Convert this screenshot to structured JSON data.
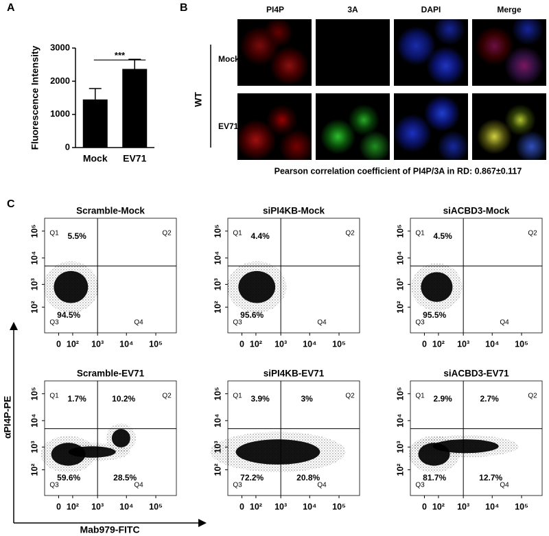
{
  "panel_labels": [
    "A",
    "B",
    "C"
  ],
  "x_label": "Mab979-FITC",
  "y_label": "αPI4P-PE",
  "figure_b": {
    "columns": [
      "PI4P",
      "3A",
      "DAPI",
      "Merge"
    ],
    "group": "WT",
    "rows": [
      "Mock",
      "EV71"
    ],
    "caption": "Pearson correlation coefficient of PI4P/3A in RD: 0.867±0.117"
  },
  "chart_data": [
    {
      "type": "bar",
      "y_label": "Fluorescence Intensity",
      "categories": [
        "Mock",
        "EV71"
      ],
      "values": [
        1450,
        2370
      ],
      "errors": [
        330,
        290
      ],
      "color": "#000000",
      "ylim": [
        0,
        3000
      ],
      "yticks": [
        0,
        1000,
        2000,
        3000
      ],
      "annotation": "***"
    },
    {
      "type": "flow",
      "title": "Scramble-Mock",
      "scale": "symlog",
      "linthresh": 50,
      "xlim": [
        -100,
        500000
      ],
      "ylim": [
        -100,
        300000
      ],
      "xticks": [
        0,
        {
          "value": 100,
          "label": "10²"
        },
        {
          "value": 1000,
          "label": "10³"
        },
        {
          "value": 10000,
          "label": "10⁴"
        },
        {
          "value": 100000,
          "label": "10⁵"
        }
      ],
      "yticks": [
        {
          "value": 100,
          "label": "10²"
        },
        {
          "value": 1000,
          "label": "10³"
        },
        {
          "value": 10000,
          "label": "10⁴"
        },
        {
          "value": 100000,
          "label": "10⁵"
        }
      ],
      "gate": [
        1000,
        5000
      ],
      "quadrants": [
        "Q1",
        "Q2",
        "Q3",
        "Q4"
      ],
      "values": [
        5.5,
        null,
        94.5,
        null
      ],
      "value_labels": [
        "5.5%",
        null,
        "94.5%",
        null
      ],
      "color": "#000000"
    },
    {
      "type": "flow",
      "title": "siPI4KB-Mock",
      "scale": "symlog",
      "linthresh": 50,
      "xlim": [
        -100,
        500000
      ],
      "ylim": [
        -100,
        300000
      ],
      "xticks": [
        0,
        {
          "value": 100,
          "label": "10²"
        },
        {
          "value": 1000,
          "label": "10³"
        },
        {
          "value": 10000,
          "label": "10⁴"
        },
        {
          "value": 100000,
          "label": "10⁵"
        }
      ],
      "yticks": [
        {
          "value": 100,
          "label": "10²"
        },
        {
          "value": 1000,
          "label": "10³"
        },
        {
          "value": 10000,
          "label": "10⁴"
        },
        {
          "value": 100000,
          "label": "10⁵"
        }
      ],
      "gate": [
        1000,
        5000
      ],
      "quadrants": [
        "Q1",
        "Q2",
        "Q3",
        "Q4"
      ],
      "values": [
        4.4,
        null,
        95.6,
        null
      ],
      "value_labels": [
        "4.4%",
        null,
        "95.6%",
        null
      ],
      "color": "#000000"
    },
    {
      "type": "flow",
      "title": "siACBD3-Mock",
      "scale": "symlog",
      "linthresh": 50,
      "xlim": [
        -100,
        500000
      ],
      "ylim": [
        -100,
        300000
      ],
      "xticks": [
        0,
        {
          "value": 100,
          "label": "10²"
        },
        {
          "value": 1000,
          "label": "10³"
        },
        {
          "value": 10000,
          "label": "10⁴"
        },
        {
          "value": 100000,
          "label": "10⁵"
        }
      ],
      "yticks": [
        {
          "value": 100,
          "label": "10²"
        },
        {
          "value": 1000,
          "label": "10³"
        },
        {
          "value": 10000,
          "label": "10⁴"
        },
        {
          "value": 100000,
          "label": "10⁵"
        }
      ],
      "gate": [
        1000,
        5000
      ],
      "quadrants": [
        "Q1",
        "Q2",
        "Q3",
        "Q4"
      ],
      "values": [
        4.5,
        null,
        95.5,
        null
      ],
      "value_labels": [
        "4.5%",
        null,
        "95.5%",
        null
      ],
      "color": "#000000"
    },
    {
      "type": "flow",
      "title": "Scramble-EV71",
      "scale": "symlog",
      "linthresh": 50,
      "xlim": [
        -100,
        500000
      ],
      "ylim": [
        -100,
        300000
      ],
      "xticks": [
        0,
        {
          "value": 100,
          "label": "10²"
        },
        {
          "value": 1000,
          "label": "10³"
        },
        {
          "value": 10000,
          "label": "10⁴"
        },
        {
          "value": 100000,
          "label": "10⁵"
        }
      ],
      "yticks": [
        {
          "value": 100,
          "label": "10²"
        },
        {
          "value": 1000,
          "label": "10³"
        },
        {
          "value": 10000,
          "label": "10⁴"
        },
        {
          "value": 100000,
          "label": "10⁵"
        }
      ],
      "gate": [
        1000,
        5000
      ],
      "quadrants": [
        "Q1",
        "Q2",
        "Q3",
        "Q4"
      ],
      "values": [
        1.7,
        10.2,
        59.6,
        28.5
      ],
      "value_labels": [
        "1.7%",
        "10.2%",
        "59.6%",
        "28.5%"
      ],
      "color": "#000000"
    },
    {
      "type": "flow",
      "title": "siPI4KB-EV71",
      "scale": "symlog",
      "linthresh": 50,
      "xlim": [
        -100,
        500000
      ],
      "ylim": [
        -100,
        300000
      ],
      "xticks": [
        0,
        {
          "value": 100,
          "label": "10²"
        },
        {
          "value": 1000,
          "label": "10³"
        },
        {
          "value": 10000,
          "label": "10⁴"
        },
        {
          "value": 100000,
          "label": "10⁵"
        }
      ],
      "yticks": [
        {
          "value": 100,
          "label": "10²"
        },
        {
          "value": 1000,
          "label": "10³"
        },
        {
          "value": 10000,
          "label": "10⁴"
        },
        {
          "value": 100000,
          "label": "10⁵"
        }
      ],
      "gate": [
        1000,
        5000
      ],
      "quadrants": [
        "Q1",
        "Q2",
        "Q3",
        "Q4"
      ],
      "values": [
        3.9,
        3,
        72.2,
        20.8
      ],
      "value_labels": [
        "3.9%",
        "3%",
        "72.2%",
        "20.8%"
      ],
      "color": "#000000"
    },
    {
      "type": "flow",
      "title": "siACBD3-EV71",
      "scale": "symlog",
      "linthresh": 50,
      "xlim": [
        -100,
        500000
      ],
      "ylim": [
        -100,
        300000
      ],
      "xticks": [
        0,
        {
          "value": 100,
          "label": "10²"
        },
        {
          "value": 1000,
          "label": "10³"
        },
        {
          "value": 10000,
          "label": "10⁴"
        },
        {
          "value": 100000,
          "label": "10⁵"
        }
      ],
      "yticks": [
        {
          "value": 100,
          "label": "10²"
        },
        {
          "value": 1000,
          "label": "10³"
        },
        {
          "value": 10000,
          "label": "10⁴"
        },
        {
          "value": 100000,
          "label": "10⁵"
        }
      ],
      "gate": [
        1000,
        5000
      ],
      "quadrants": [
        "Q1",
        "Q2",
        "Q3",
        "Q4"
      ],
      "values": [
        2.9,
        2.7,
        81.7,
        12.7
      ],
      "value_labels": [
        "2.9%",
        "2.7%",
        "81.7%",
        "12.7%"
      ],
      "color": "#000000"
    }
  ]
}
